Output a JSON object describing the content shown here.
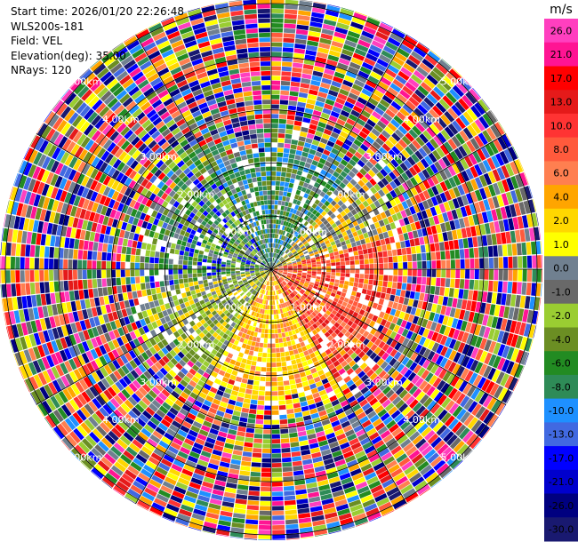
{
  "header": {
    "start_time": "Start time: 2026/01/20 22:26:48",
    "site": "WLS200s-181",
    "field": "Field: VEL",
    "elevation": "Elevation(deg): 35.00",
    "nrays": "NRays: 120"
  },
  "chart_data": {
    "type": "heatmap",
    "projection": "polar-ppi",
    "nrays": 120,
    "range_rings_km": [
      1.0,
      2.0,
      3.0,
      4.0,
      5.0
    ],
    "max_range_km": 5.1,
    "range_ring_labels": [
      "1.00km",
      "2.00km",
      "3.00km",
      "4.00km",
      "5.00km"
    ],
    "colorbar": {
      "unit": "m/s",
      "ticks": [
        "26.0",
        "21.0",
        "17.0",
        "13.0",
        "10.0",
        "8.0",
        "6.0",
        "4.0",
        "2.0",
        "1.0",
        "0.0",
        "-1.0",
        "-2.0",
        "-4.0",
        "-6.0",
        "-8.0",
        "-10.0",
        "-13.0",
        "-17.0",
        "-21.0",
        "-26.0",
        "-30.0"
      ],
      "colors_top_to_bottom": [
        "#ff3fbf",
        "#ff1493",
        "#ff0000",
        "#e51a1a",
        "#ff3333",
        "#ff5a3c",
        "#ff7f50",
        "#ffa500",
        "#ffd700",
        "#ffff00",
        "#708090",
        "#696969",
        "#9acd32",
        "#6b8e23",
        "#228b22",
        "#2e8b57",
        "#1e90ff",
        "#4169e1",
        "#0000ff",
        "#0000cd",
        "#000080",
        "#191970"
      ]
    },
    "pattern": {
      "inner_range_km": 2.5,
      "description_colors": {
        "north": "#2e8b57",
        "east": "#ff5a3c",
        "south": "#ffd700",
        "west": "#6b8e23"
      }
    }
  }
}
